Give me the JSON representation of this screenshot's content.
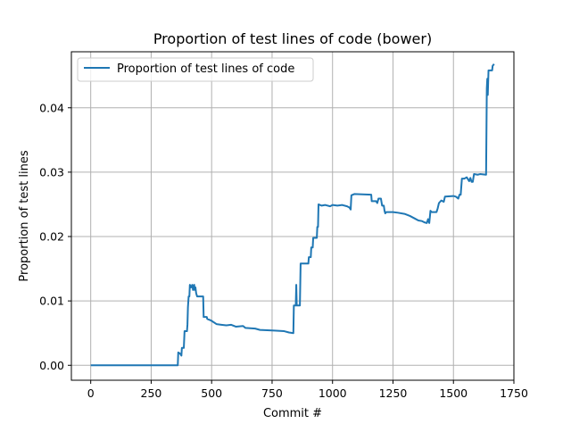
{
  "chart_data": {
    "type": "line",
    "title": "Proportion of test lines of code (bower)",
    "xlabel": "Commit #",
    "ylabel": "Proportion of test lines",
    "xlim": [
      -80,
      1750
    ],
    "ylim": [
      -0.00232,
      0.0487
    ],
    "xticks": [
      0,
      250,
      500,
      750,
      1000,
      1250,
      1500,
      1750
    ],
    "xtick_labels": [
      "0",
      "250",
      "500",
      "750",
      "1000",
      "1250",
      "1500",
      "1750"
    ],
    "yticks": [
      0.0,
      0.01,
      0.02,
      0.03,
      0.04
    ],
    "ytick_labels": [
      "0.00",
      "0.01",
      "0.02",
      "0.03",
      "0.04"
    ],
    "grid": true,
    "legend_position": "top-left",
    "series": [
      {
        "name": "Proportion of test lines of code",
        "color": "#1f77b4",
        "points": [
          [
            0,
            0.0
          ],
          [
            360,
            0.0
          ],
          [
            362,
            0.002
          ],
          [
            370,
            0.0018
          ],
          [
            375,
            0.0015
          ],
          [
            377,
            0.0027
          ],
          [
            385,
            0.0027
          ],
          [
            388,
            0.0053
          ],
          [
            398,
            0.0053
          ],
          [
            400,
            0.0063
          ],
          [
            402,
            0.009
          ],
          [
            405,
            0.0107
          ],
          [
            408,
            0.0107
          ],
          [
            410,
            0.0125
          ],
          [
            415,
            0.0121
          ],
          [
            420,
            0.0125
          ],
          [
            423,
            0.0117
          ],
          [
            428,
            0.0125
          ],
          [
            430,
            0.0117
          ],
          [
            433,
            0.0121
          ],
          [
            436,
            0.0112
          ],
          [
            440,
            0.0107
          ],
          [
            465,
            0.0107
          ],
          [
            467,
            0.0075
          ],
          [
            480,
            0.0075
          ],
          [
            482,
            0.0072
          ],
          [
            495,
            0.007
          ],
          [
            500,
            0.0069
          ],
          [
            520,
            0.0064
          ],
          [
            540,
            0.0063
          ],
          [
            560,
            0.0062
          ],
          [
            580,
            0.0063
          ],
          [
            600,
            0.006
          ],
          [
            630,
            0.0061
          ],
          [
            640,
            0.0058
          ],
          [
            680,
            0.0057
          ],
          [
            700,
            0.0055
          ],
          [
            760,
            0.0054
          ],
          [
            800,
            0.0053
          ],
          [
            820,
            0.0051
          ],
          [
            838,
            0.005
          ],
          [
            840,
            0.0093
          ],
          [
            848,
            0.0093
          ],
          [
            850,
            0.0125
          ],
          [
            852,
            0.0093
          ],
          [
            865,
            0.0093
          ],
          [
            868,
            0.0158
          ],
          [
            900,
            0.0158
          ],
          [
            902,
            0.0168
          ],
          [
            910,
            0.0168
          ],
          [
            912,
            0.0183
          ],
          [
            918,
            0.0183
          ],
          [
            920,
            0.0198
          ],
          [
            935,
            0.0198
          ],
          [
            937,
            0.0215
          ],
          [
            940,
            0.0215
          ],
          [
            942,
            0.025
          ],
          [
            955,
            0.0248
          ],
          [
            970,
            0.0249
          ],
          [
            990,
            0.0247
          ],
          [
            1000,
            0.0249
          ],
          [
            1020,
            0.0248
          ],
          [
            1040,
            0.0249
          ],
          [
            1060,
            0.0247
          ],
          [
            1070,
            0.0245
          ],
          [
            1075,
            0.0242
          ],
          [
            1078,
            0.0264
          ],
          [
            1090,
            0.0266
          ],
          [
            1160,
            0.0265
          ],
          [
            1162,
            0.0255
          ],
          [
            1180,
            0.0255
          ],
          [
            1185,
            0.0252
          ],
          [
            1190,
            0.0259
          ],
          [
            1200,
            0.0259
          ],
          [
            1205,
            0.0248
          ],
          [
            1212,
            0.0248
          ],
          [
            1215,
            0.024
          ],
          [
            1218,
            0.0236
          ],
          [
            1222,
            0.0238
          ],
          [
            1250,
            0.0238
          ],
          [
            1270,
            0.0237
          ],
          [
            1300,
            0.0235
          ],
          [
            1320,
            0.0232
          ],
          [
            1340,
            0.0228
          ],
          [
            1355,
            0.0225
          ],
          [
            1370,
            0.0224
          ],
          [
            1380,
            0.0222
          ],
          [
            1390,
            0.0221
          ],
          [
            1395,
            0.0227
          ],
          [
            1400,
            0.0221
          ],
          [
            1405,
            0.024
          ],
          [
            1410,
            0.0238
          ],
          [
            1430,
            0.0238
          ],
          [
            1435,
            0.0244
          ],
          [
            1440,
            0.0252
          ],
          [
            1450,
            0.0256
          ],
          [
            1460,
            0.0254
          ],
          [
            1465,
            0.0262
          ],
          [
            1500,
            0.0263
          ],
          [
            1510,
            0.0262
          ],
          [
            1520,
            0.0259
          ],
          [
            1525,
            0.0265
          ],
          [
            1530,
            0.0265
          ],
          [
            1535,
            0.029
          ],
          [
            1545,
            0.029
          ],
          [
            1555,
            0.0292
          ],
          [
            1560,
            0.0289
          ],
          [
            1565,
            0.0286
          ],
          [
            1570,
            0.0291
          ],
          [
            1575,
            0.0285
          ],
          [
            1580,
            0.0285
          ],
          [
            1585,
            0.0297
          ],
          [
            1600,
            0.0296
          ],
          [
            1610,
            0.0297
          ],
          [
            1635,
            0.0296
          ],
          [
            1638,
            0.043
          ],
          [
            1640,
            0.0445
          ],
          [
            1642,
            0.042
          ],
          [
            1645,
            0.0458
          ],
          [
            1660,
            0.0458
          ],
          [
            1662,
            0.0465
          ],
          [
            1668,
            0.0468
          ]
        ]
      }
    ]
  }
}
